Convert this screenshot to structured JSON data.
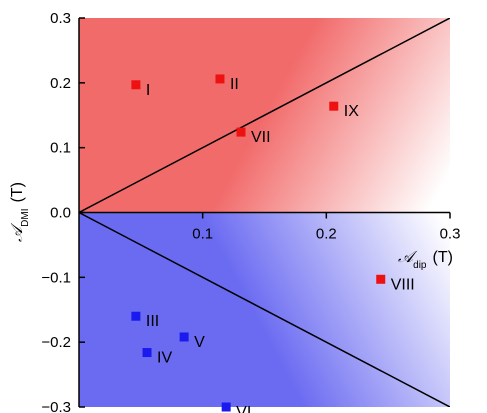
{
  "chart_data": {
    "type": "scatter",
    "title": "",
    "xlabel": {
      "symbol": "𝒜",
      "sub": "dip",
      "unit": "(T)"
    },
    "ylabel": {
      "symbol": "𝒜",
      "sub": "DMI",
      "unit": "(T)"
    },
    "xlim": [
      0,
      0.3
    ],
    "ylim": [
      -0.3,
      0.3
    ],
    "x_ticks": [
      0.1,
      0.2,
      0.3
    ],
    "x_tick_labels": [
      "0.1",
      "0.2",
      "0.3"
    ],
    "y_ticks": [
      0.3,
      0.2,
      0.1,
      0.0,
      -0.1,
      -0.2,
      -0.3
    ],
    "y_tick_labels": [
      "0.3",
      "0.2",
      "0.1",
      "0.0",
      "−0.1",
      "−0.2",
      "−0.3"
    ],
    "x_axis_position": "y = 0",
    "grid": false,
    "legend": "none",
    "boundary_lines": [
      {
        "name": "upper",
        "slope": 1.0
      },
      {
        "name": "lower",
        "slope": -1.0
      }
    ],
    "regions": {
      "upper_color": "#f26b6b",
      "lower_color": "#6b6bf2"
    },
    "series": [
      {
        "color": "#ee1111",
        "points": [
          {
            "label": "I",
            "x": 0.046,
            "y": 0.197
          },
          {
            "label": "II",
            "x": 0.114,
            "y": 0.206
          },
          {
            "label": "VII",
            "x": 0.131,
            "y": 0.124
          },
          {
            "label": "IX",
            "x": 0.206,
            "y": 0.164
          },
          {
            "label": "VIII",
            "x": 0.244,
            "y": -0.103
          }
        ]
      },
      {
        "color": "#1a1aee",
        "points": [
          {
            "label": "III",
            "x": 0.046,
            "y": -0.16
          },
          {
            "label": "IV",
            "x": 0.055,
            "y": -0.216
          },
          {
            "label": "V",
            "x": 0.085,
            "y": -0.192
          },
          {
            "label": "VI",
            "x": 0.119,
            "y": -0.3
          }
        ]
      }
    ]
  }
}
